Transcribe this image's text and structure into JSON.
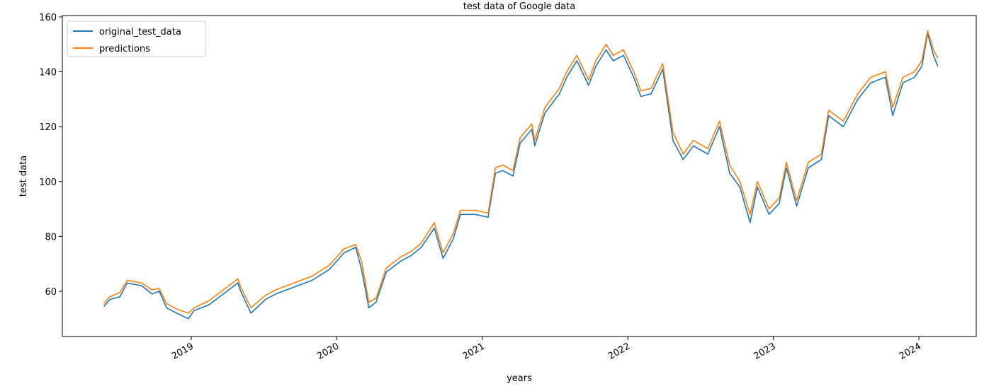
{
  "chart_data": {
    "type": "line",
    "title": "test data of Google data",
    "x_label": "years",
    "y_label": "test data",
    "x": [
      2018.4,
      2018.44,
      2018.51,
      2018.56,
      2018.66,
      2018.73,
      2018.78,
      2018.83,
      2018.9,
      2018.98,
      2019.02,
      2019.12,
      2019.22,
      2019.32,
      2019.34,
      2019.41,
      2019.51,
      2019.58,
      2019.68,
      2019.83,
      2019.95,
      2020.05,
      2020.13,
      2020.17,
      2020.22,
      2020.27,
      2020.34,
      2020.44,
      2020.51,
      2020.58,
      2020.67,
      2020.73,
      2020.8,
      2020.85,
      2020.95,
      2021.04,
      2021.09,
      2021.14,
      2021.21,
      2021.26,
      2021.34,
      2021.36,
      2021.43,
      2021.53,
      2021.58,
      2021.65,
      2021.73,
      2021.78,
      2021.85,
      2021.9,
      2021.97,
      2022.04,
      2022.09,
      2022.16,
      2022.24,
      2022.31,
      2022.38,
      2022.45,
      2022.55,
      2022.63,
      2022.7,
      2022.77,
      2022.84,
      2022.89,
      2022.97,
      2023.04,
      2023.09,
      2023.16,
      2023.24,
      2023.33,
      2023.38,
      2023.48,
      2023.58,
      2023.67,
      2023.77,
      2023.82,
      2023.89,
      2023.97,
      2024.02,
      2024.06,
      2024.1,
      2024.13
    ],
    "series": [
      {
        "name": "original_test_data",
        "color": "#1f77b4",
        "values": [
          54.5,
          57,
          58,
          63,
          62,
          59,
          60,
          54,
          52,
          50,
          53,
          55,
          59,
          63,
          60,
          52,
          57,
          59,
          61,
          64,
          68,
          74,
          76,
          68,
          54,
          56,
          67,
          71,
          73,
          76,
          83,
          72,
          79,
          88,
          88,
          87,
          103,
          104,
          102,
          114,
          119,
          113,
          125,
          132,
          138,
          144,
          135,
          142,
          148,
          144,
          146,
          138,
          131,
          132,
          141,
          115,
          108,
          113,
          110,
          120,
          103,
          98,
          85,
          98,
          88,
          92,
          105,
          91,
          105,
          108,
          124,
          120,
          130,
          136,
          138,
          124,
          136,
          138,
          142,
          154,
          146,
          142
        ]
      },
      {
        "name": "predictions",
        "color": "#ff7f0e",
        "values": [
          55.5,
          58,
          59.5,
          64,
          63,
          60.5,
          61,
          55.5,
          53.5,
          52,
          54,
          56.5,
          60.5,
          64.5,
          61.5,
          54,
          58.5,
          60.5,
          62.5,
          65.5,
          69.5,
          75.5,
          77,
          71,
          56,
          57.5,
          68.5,
          72.5,
          74.5,
          77.5,
          85,
          74,
          81,
          89.5,
          89.5,
          88.5,
          105,
          106,
          104,
          116,
          121,
          115,
          127,
          134,
          140,
          146,
          137,
          144,
          150,
          146,
          148,
          140,
          133,
          134,
          143,
          118,
          110,
          115,
          112,
          122,
          106,
          100,
          88,
          100,
          90,
          94,
          107,
          93,
          107,
          110,
          126,
          122,
          132,
          138,
          140,
          127,
          138,
          140,
          144,
          155,
          148,
          145
        ]
      }
    ],
    "xlim": [
      2018.114,
      2024.394
    ],
    "xticks": [
      2019,
      2020,
      2021,
      2022,
      2023,
      2024
    ],
    "ylim": [
      43.5,
      160.5
    ],
    "yticks": [
      60,
      80,
      100,
      120,
      140,
      160
    ],
    "legend": "upper left"
  }
}
